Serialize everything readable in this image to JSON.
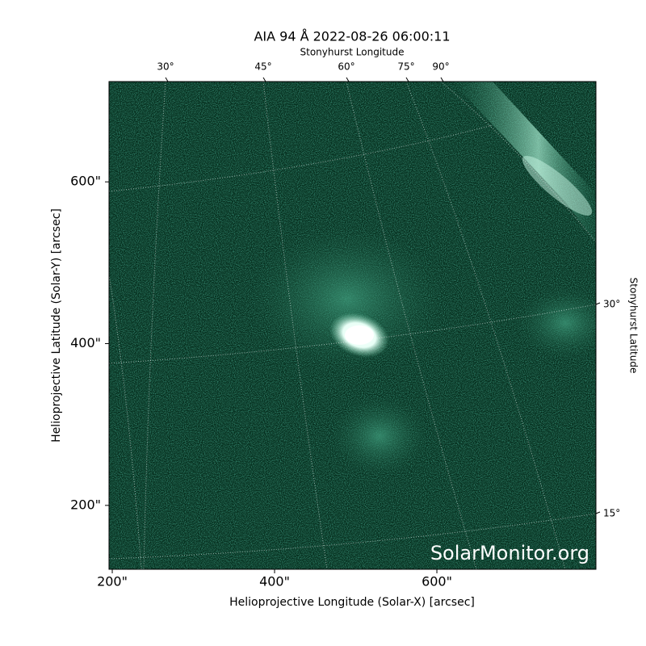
{
  "chart_data": {
    "type": "image",
    "title": "AIA 94 Å 2022-08-26 06:00:11",
    "xlabel": "Helioprojective Longitude (Solar-X) [arcsec]",
    "ylabel": "Helioprojective Latitude (Solar-Y) [arcsec]",
    "top_axis_label": "Stonyhurst Longitude",
    "right_axis_label": "Stonyhurst Latitude",
    "xlim": [
      196,
      796
    ],
    "ylim": [
      121,
      724
    ],
    "xticks": [
      {
        "value": 200,
        "label": "200\""
      },
      {
        "value": 400,
        "label": "400\""
      },
      {
        "value": 600,
        "label": "600\""
      }
    ],
    "yticks": [
      {
        "value": 200,
        "label": "200\""
      },
      {
        "value": 400,
        "label": "400\""
      },
      {
        "value": 600,
        "label": "600\""
      }
    ],
    "top_ticks": [
      {
        "value": 30,
        "label": "30°"
      },
      {
        "value": 45,
        "label": "45°"
      },
      {
        "value": 60,
        "label": "60°"
      },
      {
        "value": 75,
        "label": "75°"
      },
      {
        "value": 90,
        "label": "90°"
      }
    ],
    "right_ticks": [
      {
        "value": 30,
        "label": "30°"
      },
      {
        "value": 15,
        "label": "15°"
      }
    ],
    "watermark": "SolarMonitor.org"
  }
}
